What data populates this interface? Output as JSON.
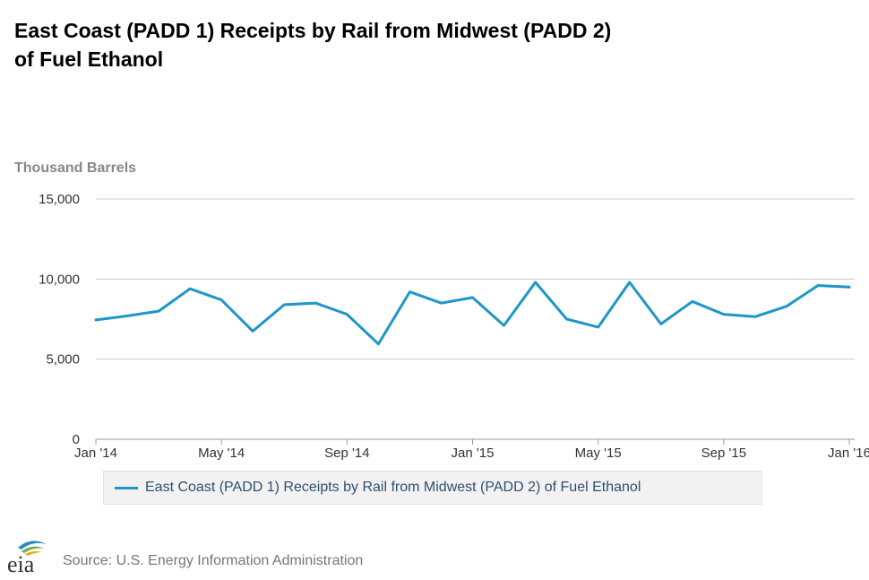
{
  "chart_data": {
    "type": "line",
    "title": "East Coast (PADD 1) Receipts by Rail from Midwest (PADD 2) of Fuel Ethanol",
    "title_lines": [
      "East Coast (PADD 1) Receipts by Rail from Midwest (PADD 2)",
      "of Fuel Ethanol"
    ],
    "ylabel": "Thousand Barrels",
    "xlabel": "",
    "ylim": [
      0,
      15000
    ],
    "yticks": [
      0,
      5000,
      10000,
      15000
    ],
    "ytick_labels": [
      "0",
      "5,000",
      "10,000",
      "15,000"
    ],
    "xticks": [
      {
        "index": 0,
        "label": "Jan '14"
      },
      {
        "index": 4,
        "label": "May '14"
      },
      {
        "index": 8,
        "label": "Sep '14"
      },
      {
        "index": 12,
        "label": "Jan '15"
      },
      {
        "index": 16,
        "label": "May '15"
      },
      {
        "index": 20,
        "label": "Sep '15"
      },
      {
        "index": 24,
        "label": "Jan '16"
      }
    ],
    "x": [
      "2014-01",
      "2014-02",
      "2014-03",
      "2014-04",
      "2014-05",
      "2014-06",
      "2014-07",
      "2014-08",
      "2014-09",
      "2014-10",
      "2014-11",
      "2014-12",
      "2015-01",
      "2015-02",
      "2015-03",
      "2015-04",
      "2015-05",
      "2015-06",
      "2015-07",
      "2015-08",
      "2015-09",
      "2015-10",
      "2015-11",
      "2015-12",
      "2016-01"
    ],
    "series": [
      {
        "name": "East Coast (PADD 1) Receipts by Rail from Midwest (PADD 2) of Fuel Ethanol",
        "color": "#1f96c8",
        "values": [
          7450,
          7700,
          8000,
          9400,
          8700,
          6750,
          8400,
          8500,
          7800,
          5950,
          9200,
          8500,
          8850,
          7100,
          9800,
          7500,
          7000,
          9800,
          7200,
          8600,
          7800,
          7650,
          8300,
          9600,
          9500
        ]
      }
    ],
    "grid": true,
    "legend_position": "bottom-center"
  },
  "source": "Source: U.S. Energy Information Administration",
  "logo_text": "eia"
}
